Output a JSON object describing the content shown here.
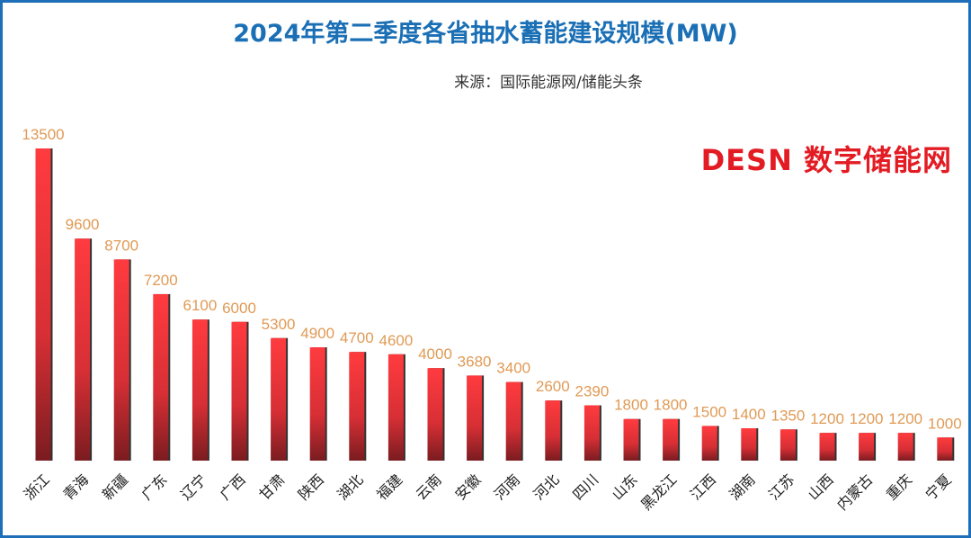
{
  "title": "2024年第二季度各省抽水蓄能建设规模(MW)",
  "source": "来源：国际能源网/储能头条",
  "watermark": "DESN 数字储能网",
  "chart_data": {
    "type": "bar",
    "title": "2024年第二季度各省抽水蓄能建设规模(MW)",
    "xlabel": "",
    "ylabel": "",
    "categories": [
      "浙江",
      "青海",
      "新疆",
      "广东",
      "辽宁",
      "广西",
      "甘肃",
      "陕西",
      "湖北",
      "福建",
      "云南",
      "安徽",
      "河南",
      "河北",
      "四川",
      "山东",
      "黑龙江",
      "江西",
      "湖南",
      "江苏",
      "山西",
      "内蒙古",
      "重庆",
      "宁夏"
    ],
    "values": [
      13500,
      9600,
      8700,
      7200,
      6100,
      6000,
      5300,
      4900,
      4700,
      4600,
      4000,
      3680,
      3400,
      2600,
      2390,
      1800,
      1800,
      1500,
      1400,
      1350,
      1200,
      1200,
      1200,
      1000
    ],
    "ylim": [
      0,
      13500
    ],
    "grid": false,
    "legend": "none",
    "bar_color": "#e8363c",
    "label_color": "#e09a55"
  }
}
